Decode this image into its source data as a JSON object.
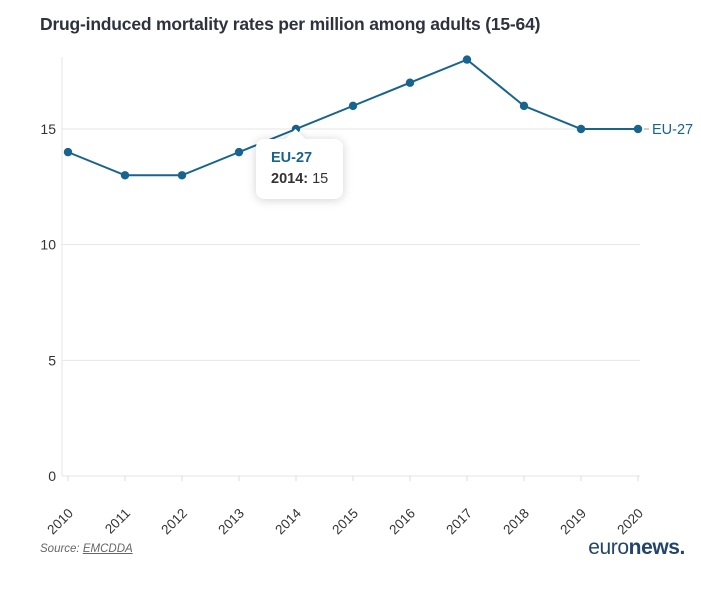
{
  "chart": {
    "title": "Drug-induced mortality rates per million among adults (15-64)"
  },
  "chart_data": {
    "type": "line",
    "title": "Drug-induced mortality rates per million among adults (15-64)",
    "x": [
      2010,
      2011,
      2012,
      2013,
      2014,
      2015,
      2016,
      2017,
      2018,
      2019,
      2020
    ],
    "series": [
      {
        "name": "EU-27",
        "values": [
          14,
          13,
          13,
          14,
          15,
          16,
          17,
          18,
          16,
          15,
          15
        ]
      }
    ],
    "y_ticks": [
      0,
      5,
      10,
      15
    ],
    "ylim": [
      0,
      18.5
    ],
    "grid": "horizontal",
    "marker": "circle",
    "line_color": "#17648f",
    "grid_color": "#e6e6e6",
    "tick_label_color": "#333333",
    "legend_position": "end-of-line"
  },
  "tooltip": {
    "series": "EU-27",
    "key": "2014:",
    "value": "15"
  },
  "footer": {
    "source_label": "Source:",
    "source_link": "EMCDDA",
    "logo_regular": "euro",
    "logo_bold": "news."
  }
}
